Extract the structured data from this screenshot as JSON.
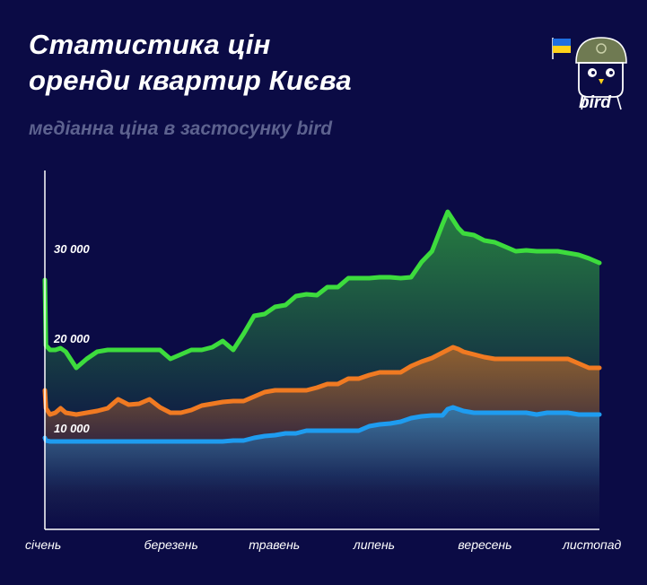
{
  "header": {
    "title_line1": "Статистика цін",
    "title_line2": "оренди квартир Києва",
    "subtitle": "медіанна ціна в застосунку bird"
  },
  "logo": {
    "text": "bird",
    "icon": "bird-helmet-icon",
    "flag": "ukraine-flag-icon"
  },
  "colors": {
    "background": "#0b0b45",
    "green": "#3ddc3d",
    "orange": "#f07a22",
    "blue": "#1e9cf0",
    "axis": "#ffffff"
  },
  "chart_data": {
    "type": "area",
    "title": "",
    "xlabel": "",
    "ylabel": "",
    "xlim": [
      0,
      53
    ],
    "ylim": [
      0,
      40000
    ],
    "grid": false,
    "legend": "none",
    "y_ticks": [
      {
        "value": 10000,
        "label": "10 000"
      },
      {
        "value": 20000,
        "label": "20 000"
      },
      {
        "value": 30000,
        "label": "30 000"
      }
    ],
    "x_ticks": [
      {
        "value": 0,
        "label": "січень"
      },
      {
        "value": 10,
        "label": "березень"
      },
      {
        "value": 20,
        "label": "травень"
      },
      {
        "value": 30,
        "label": "липень"
      },
      {
        "value": 40,
        "label": "вересень"
      },
      {
        "value": 50,
        "label": "листопад"
      }
    ],
    "x": [
      0,
      0.1,
      0.5,
      1,
      1.5,
      2,
      3,
      4,
      5,
      6,
      7,
      8,
      9,
      10,
      11,
      12,
      13,
      14,
      15,
      16,
      17,
      18,
      19,
      20,
      21,
      22,
      23,
      24,
      25,
      26,
      27,
      28,
      29,
      30,
      31,
      32,
      33,
      34,
      35,
      36,
      37,
      38,
      38.5,
      39,
      39.5,
      40,
      41,
      42,
      43,
      44,
      45,
      46,
      47,
      48,
      49,
      50,
      51,
      52,
      53
    ],
    "series": [
      {
        "color": "#3ddc3d",
        "values": [
          27800,
          20500,
          20000,
          20000,
          20200,
          19800,
          18000,
          19000,
          19800,
          20000,
          20000,
          20000,
          20000,
          20000,
          20000,
          19000,
          19500,
          20000,
          20000,
          20300,
          21000,
          20000,
          21800,
          23800,
          24000,
          24800,
          25000,
          26000,
          26200,
          26100,
          27000,
          27000,
          28000,
          28000,
          28000,
          28100,
          28100,
          28000,
          28100,
          29800,
          31000,
          34000,
          35400,
          34500,
          33600,
          33000,
          32800,
          32200,
          32000,
          31500,
          31000,
          31100,
          31000,
          31000,
          31000,
          30800,
          30600,
          30200,
          29700
        ]
      },
      {
        "color": "#f07a22",
        "values": [
          15500,
          13500,
          12800,
          13000,
          13500,
          13000,
          12800,
          13000,
          13200,
          13500,
          14500,
          13900,
          14000,
          14500,
          13600,
          13000,
          13000,
          13300,
          13800,
          14000,
          14200,
          14300,
          14300,
          14800,
          15300,
          15500,
          15500,
          15500,
          15500,
          15800,
          16200,
          16200,
          16800,
          16800,
          17200,
          17500,
          17500,
          17500,
          18200,
          18700,
          19100,
          19700,
          20000,
          20300,
          20100,
          19800,
          19500,
          19200,
          19000,
          19000,
          19000,
          19000,
          19000,
          19000,
          19000,
          19000,
          18500,
          18000,
          18000
        ]
      },
      {
        "color": "#1e9cf0",
        "values": [
          10200,
          9900,
          9800,
          9800,
          9800,
          9800,
          9800,
          9800,
          9800,
          9800,
          9800,
          9800,
          9800,
          9800,
          9800,
          9800,
          9800,
          9800,
          9800,
          9800,
          9800,
          9900,
          9900,
          10200,
          10400,
          10500,
          10700,
          10700,
          11000,
          11000,
          11000,
          11000,
          11000,
          11000,
          11500,
          11700,
          11800,
          12000,
          12400,
          12600,
          12700,
          12700,
          13400,
          13600,
          13400,
          13200,
          13000,
          13000,
          13000,
          13000,
          13000,
          13000,
          12800,
          13000,
          13000,
          13000,
          12800,
          12800,
          12800
        ]
      }
    ]
  }
}
